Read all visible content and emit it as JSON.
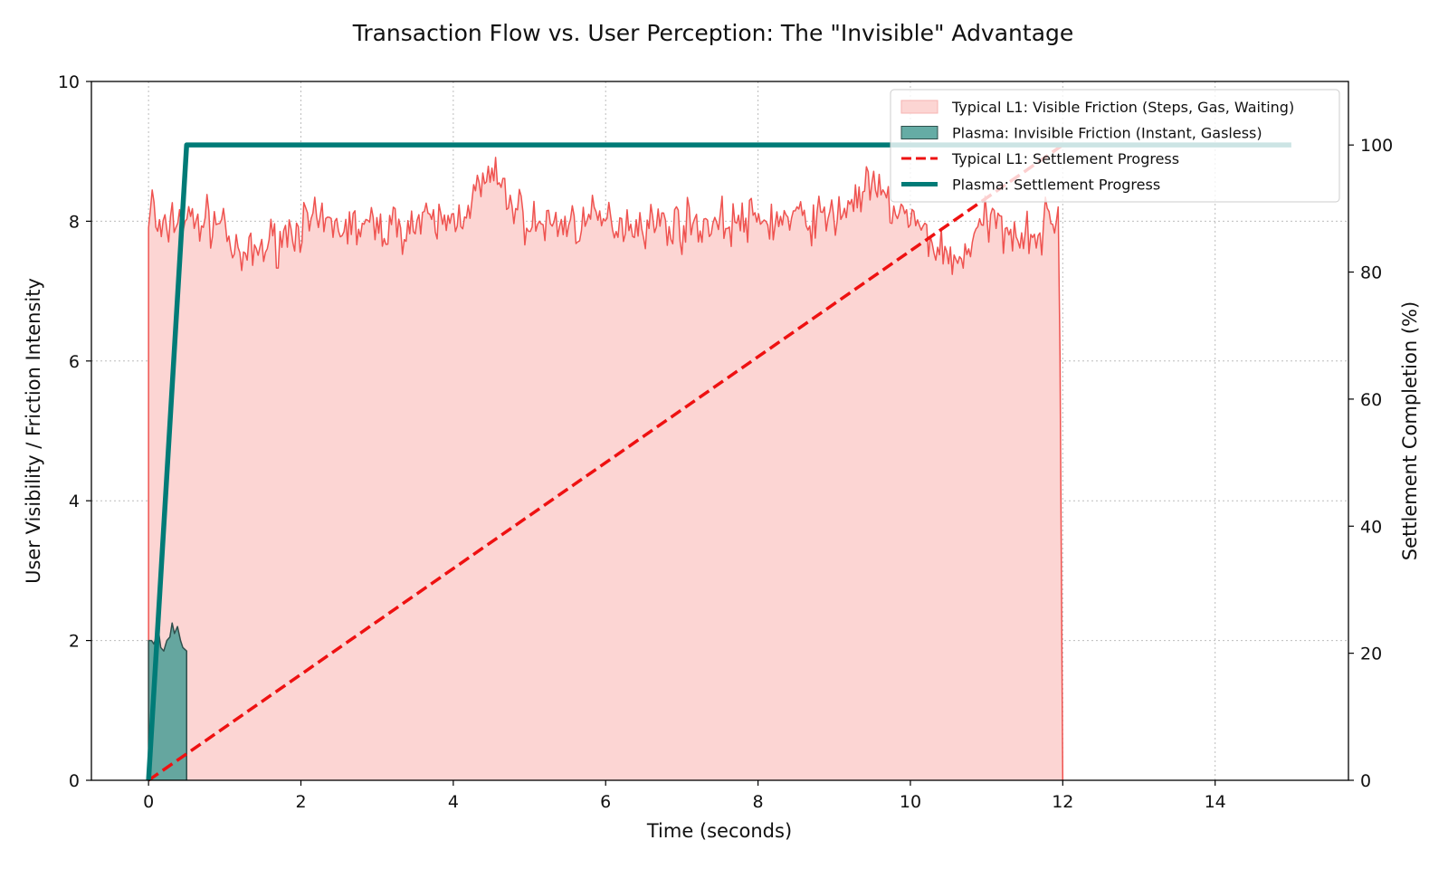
{
  "chart_data": {
    "type": "line",
    "title": "Transaction Flow vs. User Perception: The \"Invisible\" Advantage",
    "xlabel": "Time (seconds)",
    "ylabel": "User Visibility / Friction Intensity",
    "ylabel_right": "Settlement Completion (%)",
    "xlim": [
      -0.75,
      15.75
    ],
    "ylim": [
      0,
      10
    ],
    "ylim_right": [
      0,
      110
    ],
    "x_ticks": [
      0,
      2,
      4,
      6,
      8,
      10,
      12,
      14
    ],
    "x_tick_labels": [
      "0",
      "2",
      "4",
      "6",
      "8",
      "10",
      "12",
      "14"
    ],
    "y_ticks": [
      0,
      2,
      4,
      6,
      8,
      10
    ],
    "y_tick_labels": [
      "0",
      "2",
      "4",
      "6",
      "8",
      "10"
    ],
    "y_right_ticks": [
      0,
      20,
      40,
      60,
      80,
      100
    ],
    "y_right_tick_labels": [
      "0",
      "20",
      "40",
      "60",
      "80",
      "100"
    ],
    "grid": true,
    "legend_position": "top-right",
    "series": [
      {
        "name": "Typical L1: Visible Friction (Steps, Gas, Waiting)",
        "kind": "area",
        "axis": "left",
        "fill_color": "#fcd5d3",
        "line_color": "#ef5350",
        "noise_amplitude": 0.33,
        "samples": 500,
        "points": [
          [
            0,
            8.0
          ],
          [
            0.05,
            8.35
          ],
          [
            0.1,
            7.9
          ],
          [
            0.2,
            7.75
          ],
          [
            0.3,
            8.05
          ],
          [
            0.5,
            8.0
          ],
          [
            1.0,
            8.0
          ],
          [
            1.15,
            7.4
          ],
          [
            2.0,
            7.95
          ],
          [
            3.0,
            7.9
          ],
          [
            4.0,
            8.0
          ],
          [
            4.5,
            8.65
          ],
          [
            5.0,
            7.95
          ],
          [
            6.0,
            8.0
          ],
          [
            7.0,
            7.95
          ],
          [
            8.0,
            8.0
          ],
          [
            9.0,
            8.05
          ],
          [
            9.45,
            8.5
          ],
          [
            10.0,
            8.0
          ],
          [
            10.6,
            7.4
          ],
          [
            11.0,
            8.0
          ],
          [
            11.7,
            7.8
          ],
          [
            11.95,
            8.2
          ],
          [
            12.0,
            0
          ]
        ],
        "x_start": 0,
        "x_end": 12
      },
      {
        "name": "Plasma: Invisible Friction (Instant, Gasless)",
        "kind": "area",
        "axis": "left",
        "fill_color": "#4a9d95",
        "fill_opacity": 0.85,
        "line_color": "#2f4f4c",
        "points": [
          [
            0,
            2.0
          ],
          [
            0.04,
            2.0
          ],
          [
            0.07,
            1.95
          ],
          [
            0.1,
            2.05
          ],
          [
            0.13,
            2.15
          ],
          [
            0.16,
            1.9
          ],
          [
            0.2,
            1.85
          ],
          [
            0.24,
            2.0
          ],
          [
            0.28,
            2.05
          ],
          [
            0.31,
            2.25
          ],
          [
            0.34,
            2.1
          ],
          [
            0.38,
            2.2
          ],
          [
            0.42,
            2.0
          ],
          [
            0.45,
            1.9
          ],
          [
            0.5,
            1.85
          ],
          [
            0.5,
            0
          ]
        ],
        "x_start": 0,
        "x_end": 0.5
      },
      {
        "name": "Typical L1: Settlement Progress",
        "kind": "line",
        "axis": "right",
        "dashed": true,
        "color": "#ee1111",
        "x": [
          0,
          12
        ],
        "y": [
          0,
          100
        ]
      },
      {
        "name": "Plasma: Settlement Progress",
        "kind": "line",
        "axis": "right",
        "dashed": false,
        "color": "#007b77",
        "x": [
          0,
          0.45,
          0.5,
          15
        ],
        "y": [
          0,
          90,
          100,
          100
        ]
      }
    ]
  }
}
